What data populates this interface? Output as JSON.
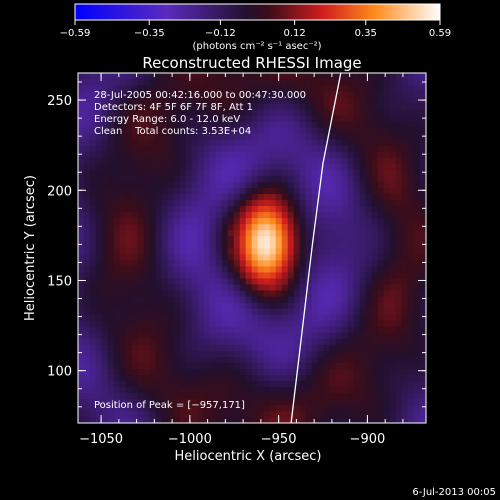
{
  "chart_data": {
    "type": "heatmap",
    "title": "Reconstructed RHESSI Image",
    "xlabel": "Heliocentric X (arcsec)",
    "ylabel": "Heliocentric Y (arcsec)",
    "xlim": [
      -1063,
      -867
    ],
    "ylim": [
      71,
      265
    ],
    "xticks": [
      -1050,
      -1000,
      -950,
      -900
    ],
    "yticks": [
      100,
      150,
      200,
      250
    ],
    "xtick_labels": [
      "−1050",
      "−1000",
      "−950",
      "−900"
    ],
    "ytick_labels": [
      "100",
      "150",
      "200",
      "250"
    ],
    "colorbar": {
      "min": -0.59,
      "max": 0.59,
      "ticks": [
        -0.59,
        -0.35,
        -0.12,
        0.12,
        0.35,
        0.59
      ],
      "tick_labels": [
        "−0.59",
        "−0.35",
        "−0.12",
        "0.12",
        "0.35",
        "0.59"
      ],
      "unit_label": "(photons cm⁻² s⁻¹ asec⁻²)"
    },
    "source": {
      "x": -957,
      "y": 171,
      "peak": 0.59
    },
    "annotations": {
      "time": "28-Jul-2005 00:42:16.000 to 00:47:30.000",
      "detectors": "Detectors: 4F 5F 6F 7F 8F, Att 1",
      "energy": "Energy Range: 6.0 - 12.0 keV",
      "clean": "Clean    Total counts: 3.53E+04",
      "peak_position": "Position of Peak = [−957,171]"
    },
    "footer_date": "6-Jul-2013 00:05",
    "limb_curve": [
      [
        -943,
        71
      ],
      [
        -937,
        120
      ],
      [
        -931,
        170
      ],
      [
        -925,
        215
      ],
      [
        -915,
        265
      ]
    ]
  }
}
